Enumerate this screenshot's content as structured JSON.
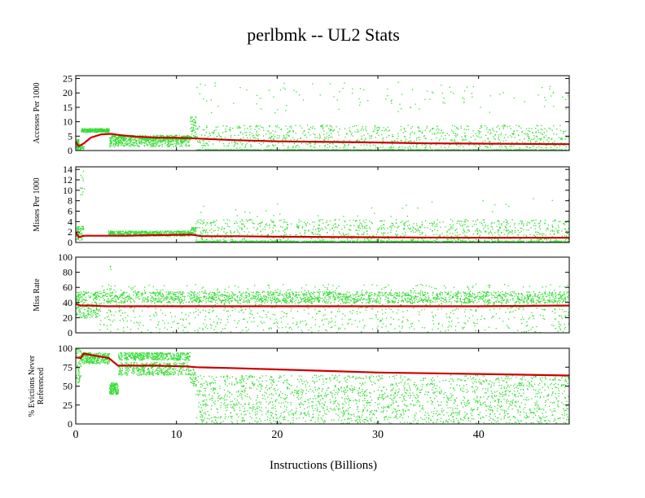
{
  "title": "perlbmk -- UL2  Stats",
  "chart_data": {
    "type": "scatter",
    "title": "perlbmk -- UL2  Stats",
    "xlabel": "Instructions (Billions)",
    "xlim": [
      0,
      49
    ],
    "xticks": [
      0,
      10,
      20,
      30,
      40
    ],
    "series_colors": {
      "samples": "#33dd33",
      "average": "#cc0000"
    },
    "panels": [
      {
        "ylabel": "Accesses Per 1000",
        "ylim": [
          0,
          26
        ],
        "yticks": [
          0,
          5,
          10,
          15,
          20,
          25
        ],
        "average": {
          "x": [
            0,
            0.3,
            0.8,
            1.5,
            2.5,
            3.5,
            4.5,
            6,
            8,
            10,
            11.5,
            13,
            16,
            20,
            25,
            30,
            35,
            40,
            45,
            49
          ],
          "y": [
            3.0,
            1.5,
            2.5,
            4.5,
            5.6,
            5.8,
            5.3,
            4.8,
            4.5,
            4.4,
            4.3,
            4.0,
            3.6,
            3.2,
            3.0,
            2.8,
            2.5,
            2.4,
            2.3,
            2.2
          ]
        },
        "samples": {
          "segments": [
            {
              "x": [
                0,
                0.3
              ],
              "bands": [
                {
                  "y": [
                    0.5,
                    4
                  ],
                  "density": 70
                }
              ]
            },
            {
              "x": [
                0.3,
                0.8
              ],
              "bands": [
                {
                  "y": [
                    0.3,
                    2
                  ],
                  "density": 30
                }
              ]
            },
            {
              "x": [
                0.5,
                3.3
              ],
              "bands": [
                {
                  "y": [
                    6.5,
                    7.8
                  ],
                  "density": 260
                }
              ]
            },
            {
              "x": [
                3.3,
                11.3
              ],
              "bands": [
                {
                  "y": [
                    3.5,
                    5.5
                  ],
                  "density": 500
                },
                {
                  "y": [
                    1.5,
                    3.5
                  ],
                  "density": 250
                }
              ]
            },
            {
              "x": [
                11.3,
                11.9
              ],
              "bands": [
                {
                  "y": [
                    4,
                    12
                  ],
                  "density": 60
                }
              ]
            },
            {
              "x": [
                11.9,
                49
              ],
              "bands": [
                {
                  "y": [
                    0,
                    0.5
                  ],
                  "density": 1600
                },
                {
                  "y": [
                    1,
                    9
                  ],
                  "density": 900
                },
                {
                  "y": [
                    13,
                    24
                  ],
                  "density": 110
                }
              ]
            }
          ]
        }
      },
      {
        "ylabel": "Misses Per 1000",
        "ylim": [
          0,
          14.5
        ],
        "yticks": [
          0,
          2,
          4,
          6,
          8,
          10,
          12,
          14
        ],
        "average": {
          "x": [
            0,
            0.3,
            0.8,
            2,
            5,
            8,
            11.5,
            12.5,
            16,
            20,
            30,
            40,
            49
          ],
          "y": [
            2.0,
            1.0,
            1.3,
            1.3,
            1.3,
            1.4,
            1.5,
            1.2,
            1.2,
            1.1,
            1.0,
            0.9,
            0.9
          ]
        },
        "samples": {
          "segments": [
            {
              "x": [
                0,
                0.8
              ],
              "bands": [
                {
                  "y": [
                    0.5,
                    3.2
                  ],
                  "density": 60
                }
              ]
            },
            {
              "x": [
                0.3,
                0.8
              ],
              "bands": [
                {
                  "y": [
                    9,
                    14
                  ],
                  "density": 12
                }
              ]
            },
            {
              "x": [
                3.2,
                11.3
              ],
              "bands": [
                {
                  "y": [
                    1.3,
                    2.3
                  ],
                  "density": 550
                }
              ]
            },
            {
              "x": [
                11.3,
                11.9
              ],
              "bands": [
                {
                  "y": [
                    1.5,
                    3
                  ],
                  "density": 50
                }
              ]
            },
            {
              "x": [
                11.9,
                49
              ],
              "bands": [
                {
                  "y": [
                    0,
                    0.4
                  ],
                  "density": 1500
                },
                {
                  "y": [
                    0.5,
                    4.5
                  ],
                  "density": 900
                },
                {
                  "y": [
                    5,
                    8.5
                  ],
                  "density": 30
                }
              ]
            }
          ]
        }
      },
      {
        "ylabel": "Miss Rate",
        "ylim": [
          0,
          100
        ],
        "yticks": [
          0,
          20,
          40,
          60,
          80,
          100
        ],
        "average": {
          "x": [
            0,
            0.5,
            1.5,
            3,
            10,
            20,
            30,
            40,
            49
          ],
          "y": [
            38,
            36,
            36,
            35,
            35,
            35,
            35,
            35,
            36
          ]
        },
        "samples": {
          "segments": [
            {
              "x": [
                0,
                2.3
              ],
              "bands": [
                {
                  "y": [
                    20,
                    55
                  ],
                  "density": 220
                }
              ]
            },
            {
              "x": [
                2.3,
                49
              ],
              "bands": [
                {
                  "y": [
                    40,
                    55
                  ],
                  "density": 1900
                },
                {
                  "y": [
                    0,
                    40
                  ],
                  "density": 700
                },
                {
                  "y": [
                    55,
                    65
                  ],
                  "density": 120
                }
              ]
            },
            {
              "x": [
                3.2,
                3.6
              ],
              "bands": [
                {
                  "y": [
                    84,
                    90
                  ],
                  "density": 3
                }
              ]
            }
          ]
        }
      },
      {
        "ylabel": "% Evictions Never Referenced",
        "ylim": [
          0,
          100
        ],
        "yticks": [
          0,
          25,
          50,
          75,
          100
        ],
        "average": {
          "x": [
            0,
            0.5,
            0.8,
            2,
            3.3,
            4.2,
            6,
            8,
            11,
            12,
            15,
            20,
            25,
            30,
            35,
            40,
            45,
            49
          ],
          "y": [
            88,
            87,
            93,
            90,
            87,
            77,
            77,
            77,
            76,
            75,
            74,
            72,
            70,
            68,
            67,
            66,
            65,
            64
          ]
        },
        "samples": {
          "segments": [
            {
              "x": [
                0,
                0.5
              ],
              "bands": [
                {
                  "y": [
                    55,
                    100
                  ],
                  "density": 60
                }
              ]
            },
            {
              "x": [
                0.5,
                3.3
              ],
              "bands": [
                {
                  "y": [
                    80,
                    95
                  ],
                  "density": 320
                }
              ]
            },
            {
              "x": [
                3.3,
                4.2
              ],
              "bands": [
                {
                  "y": [
                    40,
                    55
                  ],
                  "density": 140
                }
              ]
            },
            {
              "x": [
                4.2,
                11.3
              ],
              "bands": [
                {
                  "y": [
                    85,
                    95
                  ],
                  "density": 420
                },
                {
                  "y": [
                    65,
                    82
                  ],
                  "density": 420
                }
              ]
            },
            {
              "x": [
                11.3,
                11.9
              ],
              "bands": [
                {
                  "y": [
                    50,
                    75
                  ],
                  "density": 40
                }
              ]
            },
            {
              "x": [
                11.9,
                49
              ],
              "bands": [
                {
                  "y": [
                    0,
                    65
                  ],
                  "density": 2000
                }
              ]
            }
          ]
        }
      }
    ]
  }
}
